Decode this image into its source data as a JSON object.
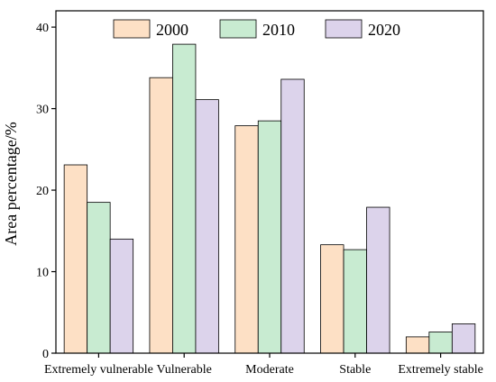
{
  "chart_data": {
    "type": "bar",
    "title": "",
    "xlabel": "",
    "ylabel": "Area percentage/%",
    "ylim": [
      0,
      42
    ],
    "yticks": [
      0,
      10,
      20,
      30,
      40
    ],
    "grid": false,
    "legend_position": "top",
    "categories": [
      "Extremely vulnerable",
      "Vulnerable",
      "Moderate",
      "Stable",
      "Extremely stable"
    ],
    "series": [
      {
        "name": "2000",
        "color": "#fde0c5",
        "values": [
          23.1,
          33.8,
          27.9,
          13.3,
          2.0
        ]
      },
      {
        "name": "2010",
        "color": "#c8ebd1",
        "values": [
          18.5,
          37.9,
          28.5,
          12.7,
          2.6
        ]
      },
      {
        "name": "2020",
        "color": "#dcd3eb",
        "values": [
          14.0,
          31.1,
          33.6,
          17.9,
          3.6
        ]
      }
    ]
  }
}
